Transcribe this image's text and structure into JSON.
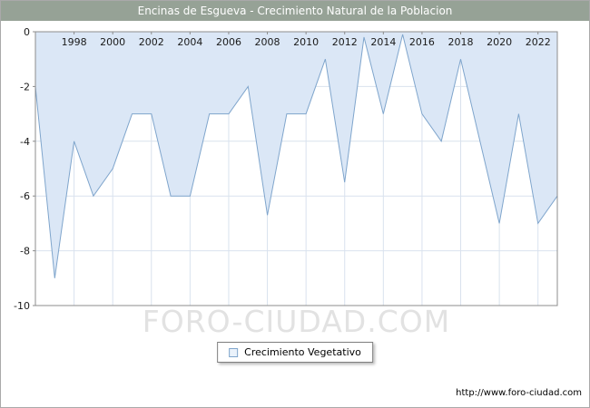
{
  "header": {
    "bg": "#96a296"
  },
  "chart_data": {
    "type": "area",
    "title": "Encinas de Esgueva - Crecimiento Natural de la Poblacion",
    "series_name": "Crecimiento Vegetativo",
    "x": [
      1996,
      1997,
      1998,
      1999,
      2000,
      2001,
      2002,
      2003,
      2004,
      2005,
      2006,
      2007,
      2008,
      2009,
      2010,
      2011,
      2012,
      2013,
      2014,
      2015,
      2016,
      2017,
      2018,
      2019,
      2020,
      2021,
      2022,
      2023
    ],
    "values": [
      -2,
      -9,
      -4,
      -6,
      -5,
      -3,
      -3,
      -6,
      -6,
      -3,
      -3,
      -2,
      -6.7,
      -3,
      -3,
      -1,
      -5.5,
      -0.2,
      -3,
      -0.1,
      -3,
      -4,
      -1,
      -4,
      -7,
      -3,
      -7,
      -6
    ],
    "xticks": [
      1998,
      2000,
      2002,
      2004,
      2006,
      2008,
      2010,
      2012,
      2014,
      2016,
      2018,
      2020,
      2022
    ],
    "yticks": [
      0,
      -2,
      -4,
      -6,
      -8,
      -10
    ],
    "ylim": [
      -10,
      0
    ],
    "grid": true,
    "legend_position": "bottom",
    "colors": {
      "area_fill": "#dbe7f6",
      "line": "#7fa5cc",
      "grid": "#d9e2ee",
      "axis": "#8c8c8c",
      "swatch_fill": "#eaf2fb"
    }
  },
  "watermark": "FORO-CIUDAD.COM",
  "footer": {
    "url_label": "http://www.foro-ciudad.com"
  }
}
